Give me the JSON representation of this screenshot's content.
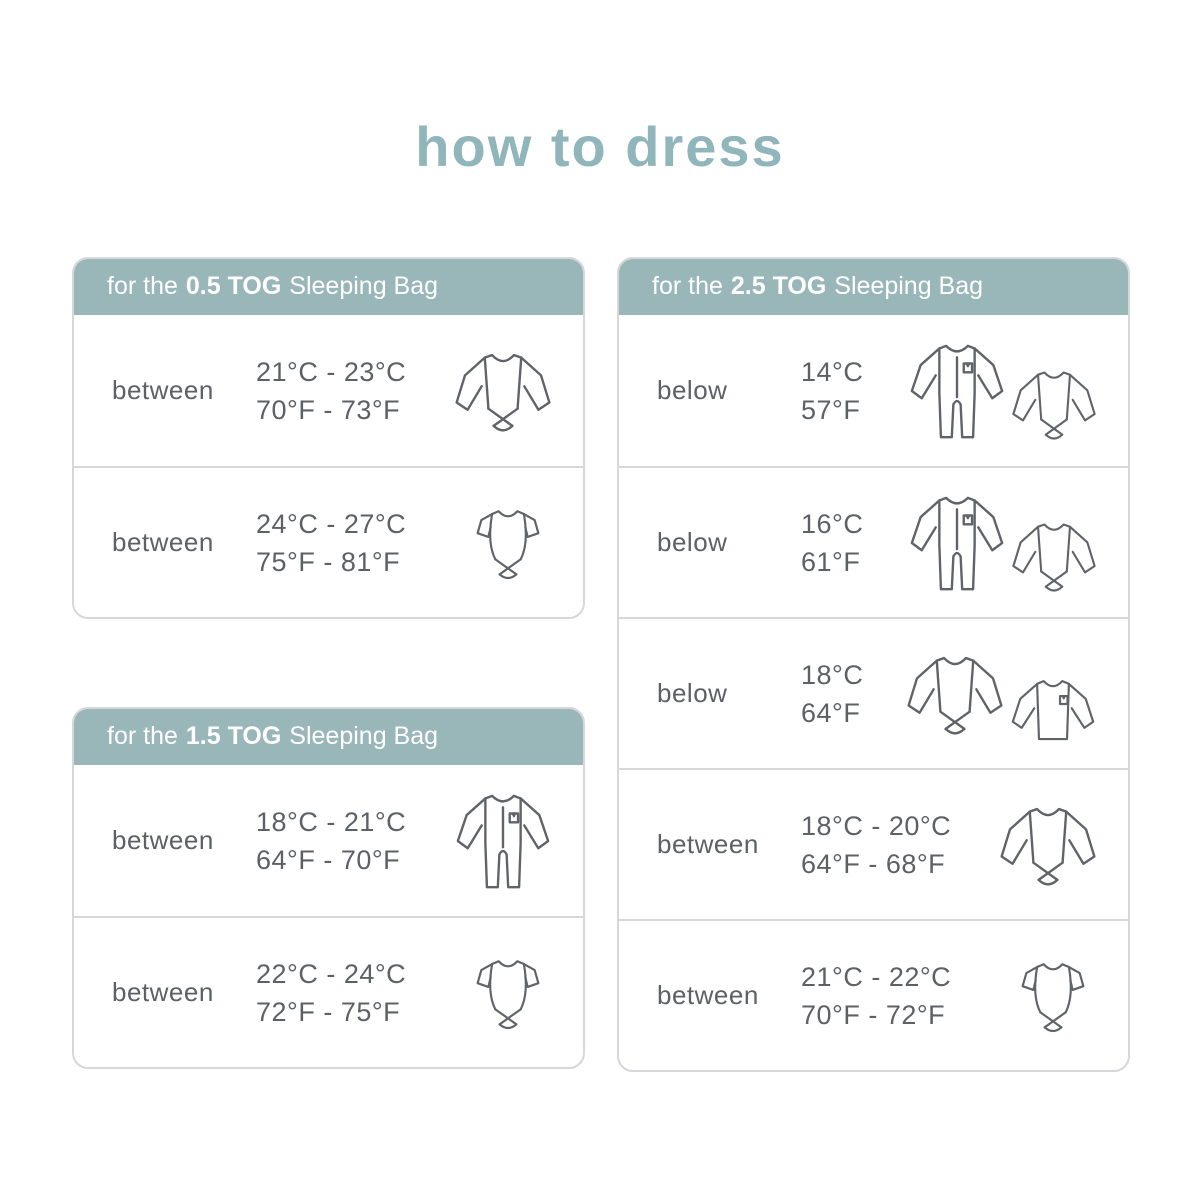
{
  "title": "how to dress",
  "colors": {
    "accent_teal": "#99b6b9",
    "title_teal": "#90b6bb",
    "text_gray": "#5d6166",
    "border_gray": "#d6d6db",
    "icon_gray": "#606468"
  },
  "tables": [
    {
      "id": "0.5-tog",
      "header": {
        "prefix": "for the",
        "tog": "0.5 TOG",
        "suffix": "Sleeping Bag"
      },
      "rows": [
        {
          "label": "between",
          "temp_c": "21°C - 23°C",
          "temp_f": "70°F - 73°F",
          "icons": [
            "long-sleeve-bodysuit"
          ]
        },
        {
          "label": "between",
          "temp_c": "24°C - 27°C",
          "temp_f": "75°F - 81°F",
          "icons": [
            "short-sleeve-bodysuit"
          ]
        }
      ]
    },
    {
      "id": "1.5-tog",
      "header": {
        "prefix": "for the",
        "tog": "1.5 TOG",
        "suffix": "Sleeping Bag"
      },
      "rows": [
        {
          "label": "between",
          "temp_c": "18°C - 21°C",
          "temp_f": "64°F - 70°F",
          "icons": [
            "sleepsuit"
          ]
        },
        {
          "label": "between",
          "temp_c": "22°C - 24°C",
          "temp_f": "72°F - 75°F",
          "icons": [
            "short-sleeve-bodysuit"
          ]
        }
      ]
    },
    {
      "id": "2.5-tog",
      "header": {
        "prefix": "for the",
        "tog": "2.5 TOG",
        "suffix": "Sleeping Bag"
      },
      "rows": [
        {
          "label": "below",
          "temp_c": "14°C",
          "temp_f": "57°F",
          "icons": [
            "sleepsuit",
            "long-sleeve-bodysuit"
          ]
        },
        {
          "label": "below",
          "temp_c": "16°C",
          "temp_f": "61°F",
          "icons": [
            "sleepsuit",
            "long-sleeve-bodysuit"
          ]
        },
        {
          "label": "below",
          "temp_c": "18°C",
          "temp_f": "64°F",
          "icons": [
            "long-sleeve-bodysuit",
            "long-sleeve-shirt"
          ]
        },
        {
          "label": "between",
          "temp_c": "18°C - 20°C",
          "temp_f": "64°F - 68°F",
          "icons": [
            "long-sleeve-bodysuit"
          ]
        },
        {
          "label": "between",
          "temp_c": "21°C - 22°C",
          "temp_f": "70°F - 72°F",
          "icons": [
            "short-sleeve-bodysuit"
          ]
        }
      ]
    }
  ]
}
